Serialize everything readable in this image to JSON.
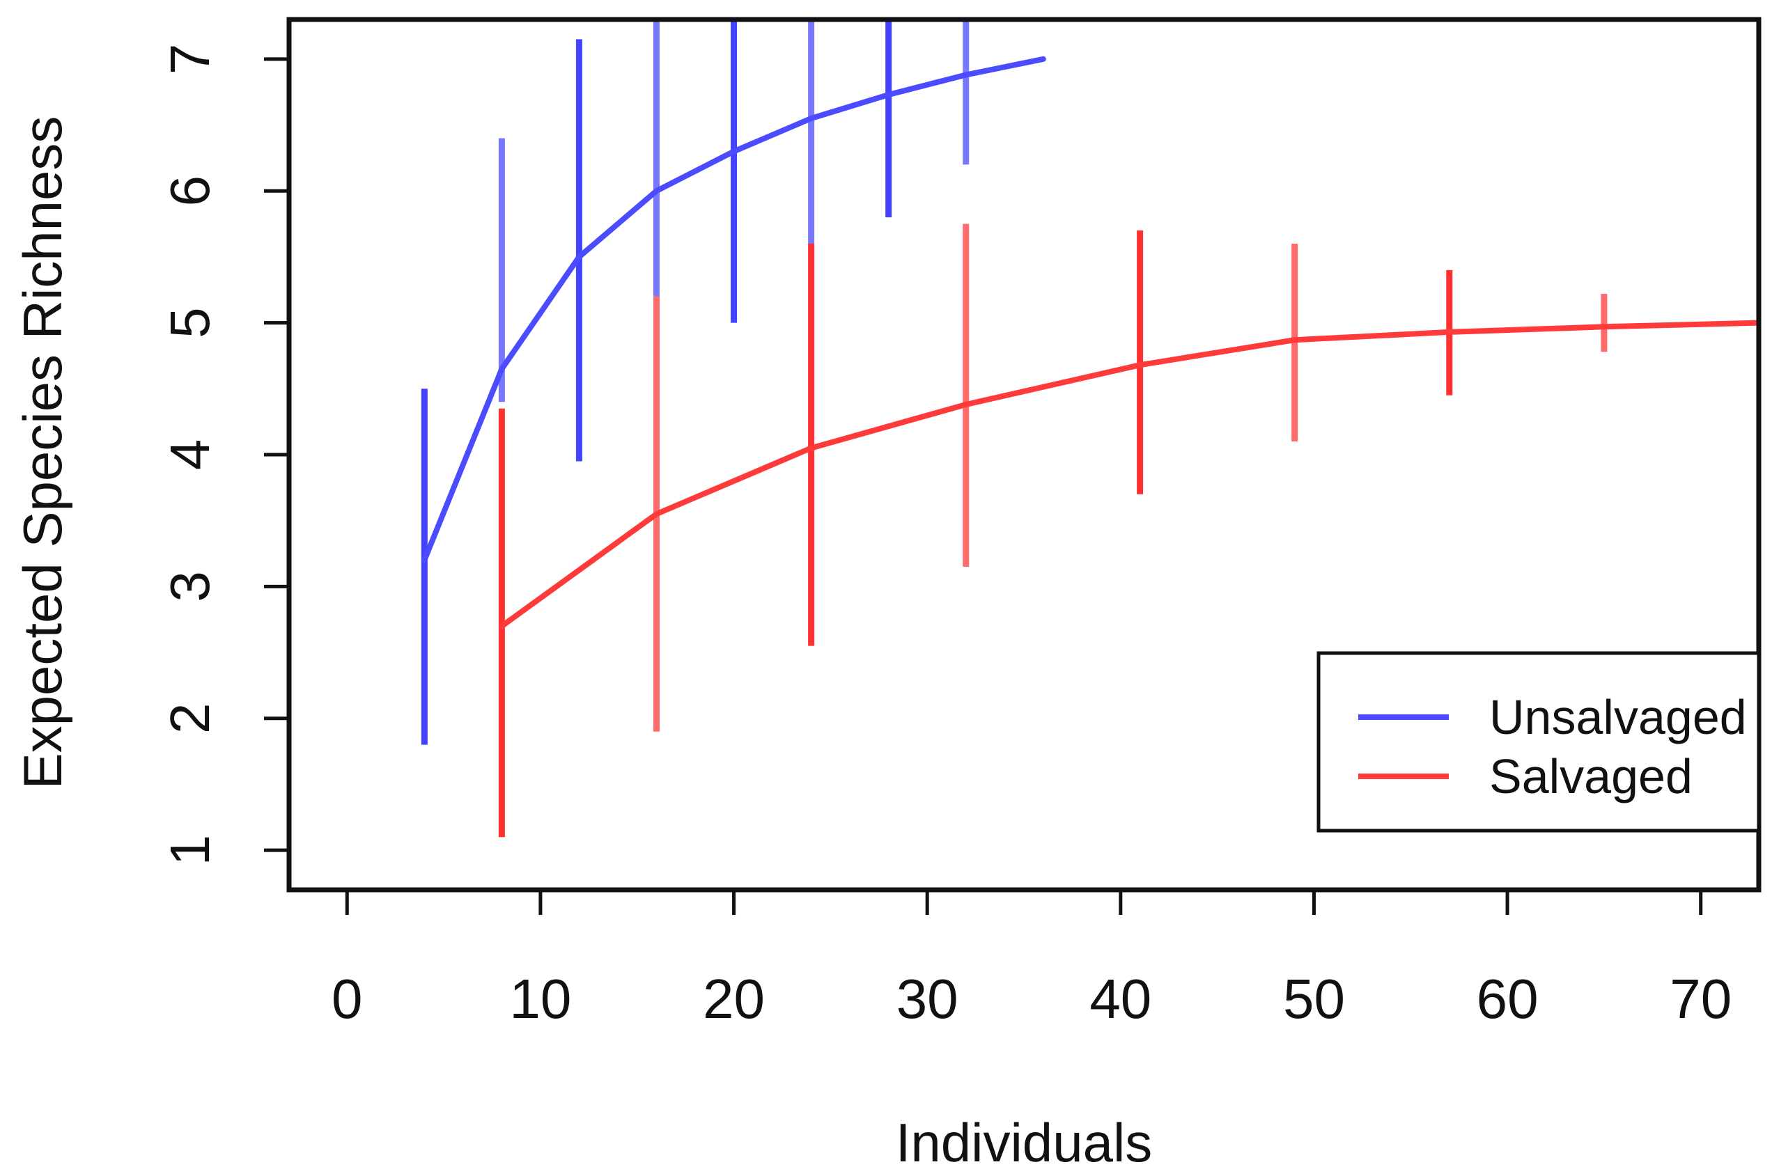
{
  "chart_data": {
    "type": "line",
    "title": "",
    "xlabel": "Individuals",
    "ylabel": "Expected Species Richness",
    "xlim": [
      -3,
      73
    ],
    "ylim": [
      0.7,
      7.3
    ],
    "xticks": [
      0,
      10,
      20,
      30,
      40,
      50,
      60,
      70
    ],
    "yticks": [
      1,
      2,
      3,
      4,
      5,
      6,
      7
    ],
    "grid": false,
    "legend_position": "bottom-right",
    "series": [
      {
        "name": "Unsalvaged",
        "color": "#4b4bff",
        "error_color": "#2f2fff",
        "x": [
          4,
          8,
          12,
          16,
          20,
          24,
          28,
          32,
          36
        ],
        "y": [
          3.2,
          4.65,
          5.5,
          6.0,
          6.3,
          6.55,
          6.73,
          6.88,
          7.0
        ],
        "error_bars": [
          {
            "x": 4,
            "low": 1.8,
            "high": 4.5
          },
          {
            "x": 8,
            "low": 4.4,
            "high": 6.4
          },
          {
            "x": 12,
            "low": 3.95,
            "high": 7.15
          },
          {
            "x": 16,
            "low": 5.2,
            "high": 7.3
          },
          {
            "x": 20,
            "low": 5.0,
            "high": 7.3
          },
          {
            "x": 24,
            "low": 5.6,
            "high": 7.3
          },
          {
            "x": 28,
            "low": 5.8,
            "high": 7.3
          },
          {
            "x": 32,
            "low": 6.2,
            "high": 7.3
          }
        ]
      },
      {
        "name": "Salvaged",
        "color": "#ff3a3a",
        "error_color": "#ff1a1a",
        "x": [
          8,
          16,
          24,
          32,
          41,
          49,
          57,
          65,
          73
        ],
        "y": [
          2.7,
          3.55,
          4.05,
          4.38,
          4.68,
          4.87,
          4.93,
          4.97,
          5.0
        ],
        "error_bars": [
          {
            "x": 8,
            "low": 1.1,
            "high": 4.35
          },
          {
            "x": 16,
            "low": 1.9,
            "high": 5.2
          },
          {
            "x": 24,
            "low": 2.55,
            "high": 5.6
          },
          {
            "x": 32,
            "low": 3.15,
            "high": 5.75
          },
          {
            "x": 41,
            "low": 3.7,
            "high": 5.7
          },
          {
            "x": 49,
            "low": 4.1,
            "high": 5.6
          },
          {
            "x": 57,
            "low": 4.45,
            "high": 5.4
          },
          {
            "x": 65,
            "low": 4.78,
            "high": 5.22
          }
        ]
      }
    ]
  }
}
